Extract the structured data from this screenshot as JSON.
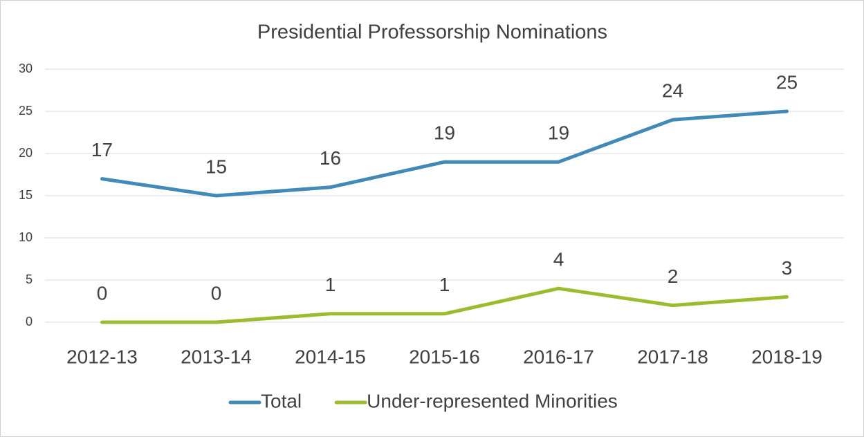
{
  "chart_data": {
    "type": "line",
    "title": "Presidential Professorship Nominations",
    "categories": [
      "2012-13",
      "2013-14",
      "2014-15",
      "2015-16",
      "2016-17",
      "2017-18",
      "2018-19"
    ],
    "series": [
      {
        "name": "Total",
        "color": "#4289b5",
        "values": [
          17,
          15,
          16,
          19,
          19,
          24,
          25
        ]
      },
      {
        "name": "Under-represented Minorities",
        "color": "#9cbb2f",
        "values": [
          0,
          0,
          1,
          1,
          4,
          2,
          3
        ]
      }
    ],
    "ylim": [
      0,
      30
    ],
    "yticks": [
      0,
      5,
      10,
      15,
      20,
      25,
      30
    ],
    "grid": true,
    "legend": "bottom",
    "data_labels": true
  }
}
